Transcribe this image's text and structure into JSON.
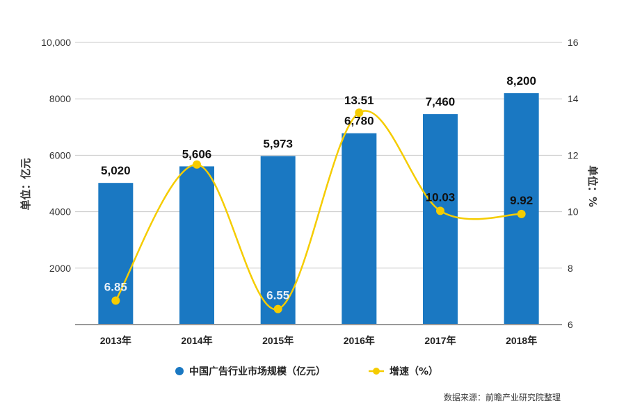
{
  "chart_data": {
    "type": "bar",
    "categories": [
      "2013年",
      "2014年",
      "2015年",
      "2016年",
      "2017年",
      "2018年"
    ],
    "series": [
      {
        "name": "中国广告行业市场规模（亿元）",
        "type": "bar",
        "axis": "left",
        "values": [
          5020,
          5606,
          5973,
          6780,
          7460,
          8200
        ],
        "labels": [
          "5,020",
          "5,606",
          "5,973",
          "6,780",
          "7,460",
          "8,200"
        ],
        "color": "#1a78c2"
      },
      {
        "name": "增速（%）",
        "type": "line",
        "axis": "right",
        "smooth": true,
        "values": [
          6.85,
          11.67,
          6.55,
          13.51,
          10.03,
          9.92
        ],
        "labels": [
          "6.85",
          "",
          "6.55",
          "13.51",
          "10.03",
          "9.92"
        ],
        "label_colors": [
          "#e8f0f8",
          "",
          "#e8f0f8",
          "#111111",
          "#111111",
          "#111111"
        ],
        "color": "#f5cc00"
      }
    ],
    "y_left": {
      "title": "单位：亿元",
      "ylim": [
        0,
        10000
      ],
      "ticks": [
        2000,
        4000,
        6000,
        8000,
        10000
      ],
      "tick_labels": [
        "2000",
        "4000",
        "6000",
        "8000",
        "10,000"
      ]
    },
    "y_right": {
      "title": "单位：%",
      "ylim": [
        6,
        16
      ],
      "ticks": [
        6,
        8,
        10,
        12,
        14,
        16
      ],
      "tick_labels": [
        "6",
        "8",
        "10",
        "12",
        "14",
        "16"
      ]
    },
    "grid": true,
    "legend_position": "bottom",
    "source": "数据来源：前瞻产业研究院整理"
  }
}
